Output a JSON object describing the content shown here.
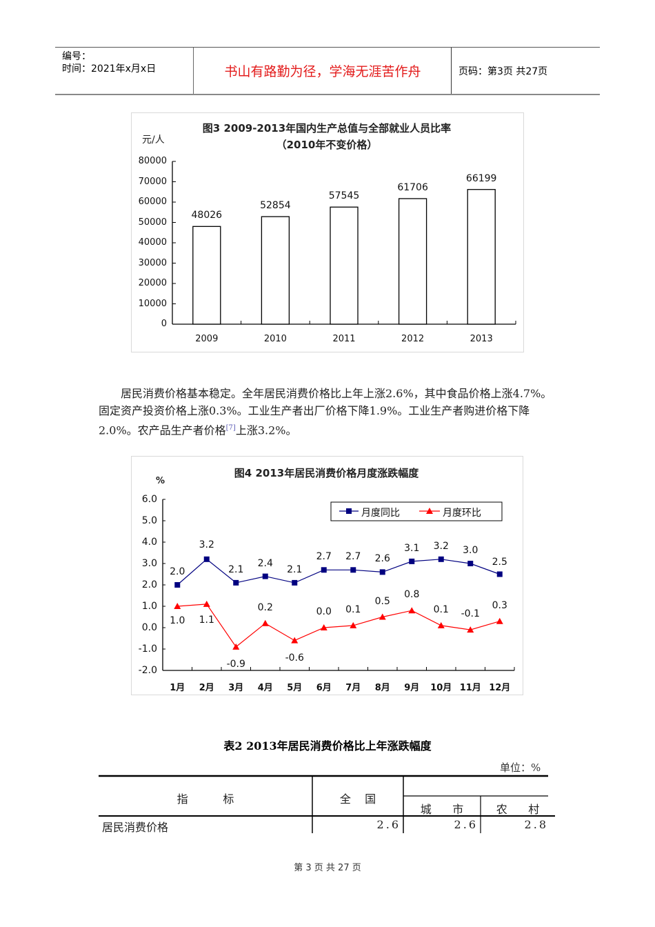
{
  "header": {
    "number_label": "编号：",
    "time_label": "时间：2021年x月x日",
    "motto": "书山有路勤为径，学海无涯苦作舟",
    "page_info": "页码：第3页  共27页"
  },
  "figure3": {
    "title": "图3   2009-2013年国内生产总值与全部就业人员比率",
    "subtitle": "（2010年不变价格）",
    "unit": "元/人"
  },
  "paragraph": {
    "text_1": "居民消费价格基本稳定。全年居民消费价格比上年上涨2.6%，其中食品价格上涨4.7%。固定资产投资价格上涨0.3%。工业生产者出厂价格下降1.9%。工业生产者购进价格下降2.0%。农产品生产者价格",
    "footnote": "[7]",
    "text_2": "上涨3.2%。"
  },
  "figure4": {
    "title": "图4   2013年居民消费价格月度涨跌幅度",
    "unit": "%"
  },
  "table2": {
    "title": "表2 2013年居民消费价格比上年涨跌幅度",
    "unit": "单位：%",
    "headers": {
      "indicator": "指          标",
      "national": "全    国",
      "urban": "城      市",
      "rural": "农      村"
    },
    "rows": [
      {
        "indicator": "居民消费价格",
        "national": "2.6",
        "urban": "2.6",
        "rural": "2.8"
      }
    ]
  },
  "footer": {
    "page_text": "第 3 页 共 27 页"
  },
  "chart_data": [
    {
      "type": "bar",
      "title": "图3 2009-2013年国内生产总值与全部就业人员比率（2010年不变价格）",
      "ylabel": "元/人",
      "xlabel": "",
      "categories": [
        "2009",
        "2010",
        "2011",
        "2012",
        "2013"
      ],
      "values": [
        48026,
        52854,
        57545,
        61706,
        66199
      ],
      "yticks": [
        "0",
        "10000",
        "20000",
        "30000",
        "40000",
        "50000",
        "60000",
        "70000",
        "80000"
      ],
      "ylim": [
        0,
        80000
      ],
      "grid": false,
      "bar_fill": "#ffffff",
      "bar_stroke": "#000000"
    },
    {
      "type": "line",
      "title": "图4 2013年居民消费价格月度涨跌幅度",
      "ylabel": "%",
      "xlabel": "",
      "categories": [
        "1月",
        "2月",
        "3月",
        "4月",
        "5月",
        "6月",
        "7月",
        "8月",
        "9月",
        "10月",
        "11月",
        "12月"
      ],
      "yticks": [
        "-2.0",
        "-1.0",
        "0.0",
        "1.0",
        "2.0",
        "3.0",
        "4.0",
        "5.0",
        "6.0"
      ],
      "ylim": [
        -2.0,
        6.0
      ],
      "grid": false,
      "legend_position": "top-right",
      "series": [
        {
          "name": "月度同比",
          "color": "#000080",
          "marker": "square",
          "values": [
            2.0,
            3.2,
            2.1,
            2.4,
            2.1,
            2.7,
            2.7,
            2.6,
            3.1,
            3.2,
            3.0,
            2.5
          ]
        },
        {
          "name": "月度环比",
          "color": "#ff0000",
          "marker": "triangle",
          "values": [
            1.0,
            1.1,
            -0.9,
            0.2,
            -0.6,
            0.0,
            0.1,
            0.5,
            0.8,
            0.1,
            -0.1,
            0.3
          ]
        }
      ]
    }
  ]
}
